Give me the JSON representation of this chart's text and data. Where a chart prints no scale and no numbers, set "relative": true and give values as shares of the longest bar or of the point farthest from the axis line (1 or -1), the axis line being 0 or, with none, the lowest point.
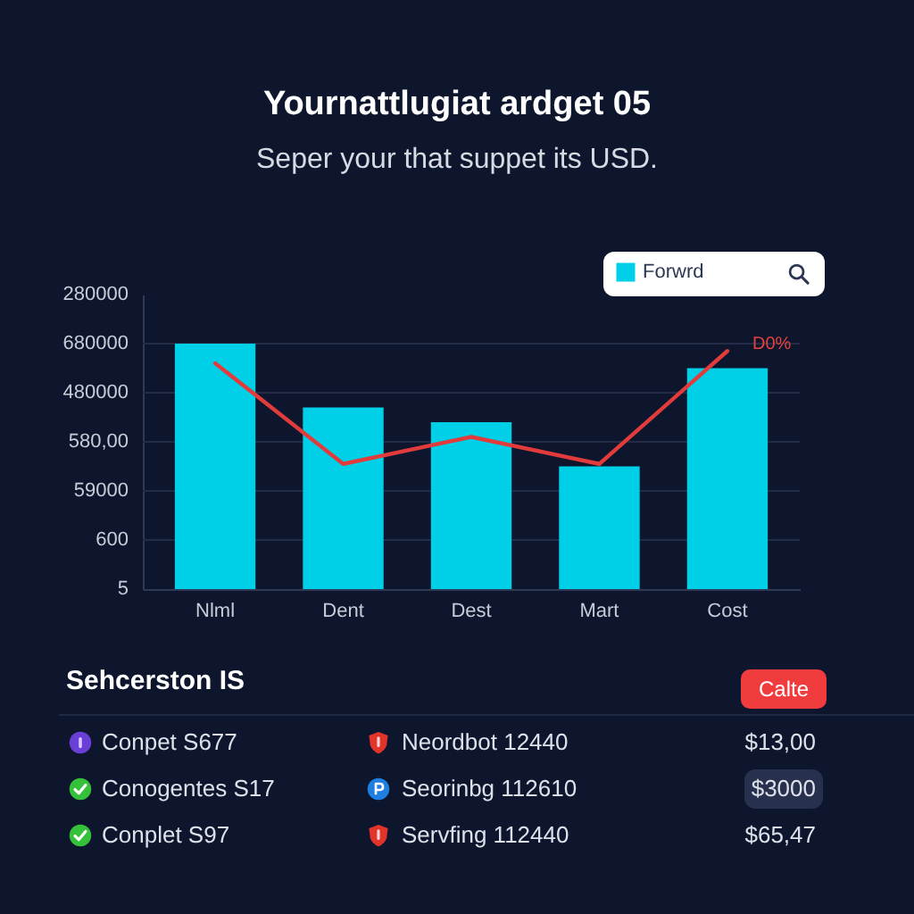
{
  "chart_data": [
    {
      "type": "bar",
      "title": "Yournattlugiat ardget 05",
      "subtitle": "Seper your that suppet its USD.",
      "categories": [
        "Nlml",
        "Dent",
        "Dest",
        "Mart",
        "Cost"
      ],
      "relative": true,
      "series": [
        {
          "name": "Forwrd",
          "type": "bar",
          "color": "#00cfe8",
          "values": [
            1.0,
            0.74,
            0.68,
            0.5,
            0.9
          ]
        },
        {
          "type": "line",
          "color": "#e23b3b",
          "values": [
            0.92,
            0.51,
            0.62,
            0.51,
            0.97
          ]
        }
      ],
      "grid": "y",
      "legend": "top right",
      "annotations": [
        {
          "text": "D0%",
          "x": "Cost",
          "y": 0.97
        },
        "5",
        "600",
        "59000",
        "580,00",
        "480000",
        "680000",
        "280000"
      ]
    },
    {
      "type": "other",
      "title": "Sehcerston IS",
      "annotations": [
        "Calte",
        "Conpet S677",
        "Neordbot 12440",
        "$13,00",
        "Conogentes S17",
        "Seorinbg 112610",
        "$3000",
        "Conplet S97",
        "Servfing 112440",
        "$65,47"
      ]
    }
  ]
}
